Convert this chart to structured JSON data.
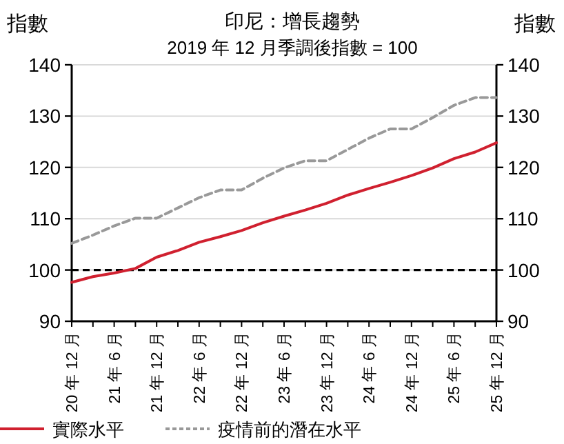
{
  "chart_data": {
    "type": "line",
    "title": "印尼：增長趨勢",
    "subtitle": "2019 年 12 月季調後指數 = 100",
    "ylabel": "指數",
    "y2label": "指數",
    "categories": [
      "20 年 12 月",
      null,
      "21 年 6 月",
      null,
      "21 年 12 月",
      null,
      "22 年 6 月",
      null,
      "22 年 12 月",
      null,
      "23 年 6 月",
      null,
      "23 年 12 月",
      null,
      "24 年 6 月",
      null,
      "24 年 12 月",
      null,
      "25 年 6 月",
      null,
      "25 年 12 月"
    ],
    "series": [
      {
        "name": "實際水平",
        "color": "#d0202f",
        "line_style": "solid",
        "values": [
          97.6,
          98.7,
          99.4,
          100.3,
          102.5,
          103.8,
          105.4,
          106.5,
          107.7,
          109.2,
          110.5,
          111.7,
          113.0,
          114.6,
          115.9,
          117.1,
          118.4,
          119.9,
          121.7,
          123.0,
          124.8
        ]
      },
      {
        "name": "疫情前的潛在水平",
        "color": "#999999",
        "line_style": "dashed",
        "values": [
          105.2,
          106.8,
          108.6,
          110.1,
          110.1,
          112.1,
          114.1,
          115.6,
          115.6,
          117.9,
          119.9,
          121.3,
          121.3,
          123.5,
          125.7,
          127.5,
          127.5,
          129.7,
          132.1,
          133.6,
          133.6
        ]
      }
    ],
    "ylim": [
      90,
      140
    ],
    "yticks": [
      90,
      100,
      110,
      120,
      130,
      140
    ],
    "y2lim": [
      90,
      140
    ],
    "y2ticks": [
      90,
      100,
      110,
      120,
      130,
      140
    ],
    "ref_lines": [
      {
        "axis": "y",
        "value": 100,
        "color": "#000000",
        "line_style": "dashed"
      }
    ],
    "grid": "y",
    "legend": "bottom"
  }
}
